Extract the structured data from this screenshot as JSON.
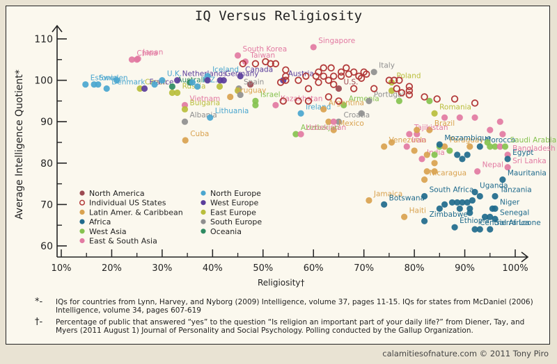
{
  "chart_data": {
    "type": "scatter",
    "title": "IQ Versus Religiosity",
    "xlabel": "Religiosity†",
    "ylabel": "Average Intelligence Quotient*",
    "xlim": [
      10,
      100
    ],
    "ylim": [
      57,
      112
    ],
    "xticks": [
      "10%",
      "20%",
      "30%",
      "40%",
      "50%",
      "60%",
      "70%",
      "80%",
      "90%",
      "100%"
    ],
    "yticks": [
      "60",
      "70",
      "80",
      "90",
      "100",
      "110"
    ],
    "legend_position": "bottom-left",
    "legend": [
      {
        "key": "na",
        "name": "North America",
        "color": "#9c4a52",
        "hollow": false
      },
      {
        "key": "us",
        "name": "Individual US States",
        "color": "#b23a3a",
        "hollow": true
      },
      {
        "key": "la",
        "name": "Latin Amer. & Caribbean",
        "color": "#d9a24f",
        "hollow": false
      },
      {
        "key": "af",
        "name": "Africa",
        "color": "#1f6a8c",
        "hollow": false
      },
      {
        "key": "wa",
        "name": "West Asia",
        "color": "#86c24f",
        "hollow": false
      },
      {
        "key": "ea",
        "name": "East & South Asia",
        "color": "#e27aa2",
        "hollow": false
      },
      {
        "key": "ne",
        "name": "North Europe",
        "color": "#4aa6cf",
        "hollow": false
      },
      {
        "key": "we",
        "name": "West Europe",
        "color": "#5a3d9b",
        "hollow": false
      },
      {
        "key": "ee",
        "name": "East Europe",
        "color": "#b9be3c",
        "hollow": false
      },
      {
        "key": "se",
        "name": "South Europe",
        "color": "#8f8f8f",
        "hollow": false
      },
      {
        "key": "oc",
        "name": "Oceania",
        "color": "#2e8b62",
        "hollow": false
      }
    ],
    "points": [
      {
        "label": "Sweden",
        "region": "ne",
        "x": 16.5,
        "y": 99
      },
      {
        "label": "",
        "region": "ne",
        "x": 17.3,
        "y": 99
      },
      {
        "label": "Estonia",
        "region": "ne",
        "x": 14.8,
        "y": 99
      },
      {
        "label": "Denmark",
        "region": "ne",
        "x": 19,
        "y": 98
      },
      {
        "label": "",
        "region": "ne",
        "x": 21,
        "y": 100
      },
      {
        "label": "China",
        "region": "ea",
        "x": 24,
        "y": 105
      },
      {
        "label": "",
        "region": "ea",
        "x": 25,
        "y": 105
      },
      {
        "label": "Japan",
        "region": "ea",
        "x": 25.2,
        "y": 105.2
      },
      {
        "label": "Czech",
        "region": "ee",
        "x": 25.6,
        "y": 98
      },
      {
        "label": "France",
        "region": "we",
        "x": 26.5,
        "y": 98
      },
      {
        "label": "",
        "region": "ne",
        "x": 28.5,
        "y": 99
      },
      {
        "label": "U.K.",
        "region": "ne",
        "x": 30,
        "y": 100
      },
      {
        "label": "Australia",
        "region": "oc",
        "x": 32,
        "y": 98.5
      },
      {
        "label": "",
        "region": "ee",
        "x": 32,
        "y": 97
      },
      {
        "label": "Russia",
        "region": "ee",
        "x": 33,
        "y": 97
      },
      {
        "label": "Netherlands",
        "region": "we",
        "x": 33,
        "y": 100
      },
      {
        "label": "",
        "region": "oc",
        "x": 35.5,
        "y": 99.5
      },
      {
        "label": "N.Z.",
        "region": "ne",
        "x": 37,
        "y": 98.5
      },
      {
        "label": "",
        "region": "ne",
        "x": 36,
        "y": 99.5
      },
      {
        "label": "Iceland",
        "region": "ne",
        "x": 39,
        "y": 101
      },
      {
        "label": "",
        "region": "we",
        "x": 39,
        "y": 100
      },
      {
        "label": "Germany",
        "region": "we",
        "x": 41.5,
        "y": 100
      },
      {
        "label": "",
        "region": "we",
        "x": 42.2,
        "y": 100
      },
      {
        "label": "",
        "region": "ee",
        "x": 41.4,
        "y": 98.5
      },
      {
        "label": "South Korea",
        "region": "ea",
        "x": 45,
        "y": 106
      },
      {
        "label": "Taiwan",
        "region": "ea",
        "x": 46.5,
        "y": 104.5
      },
      {
        "label": "Canada",
        "region": "we",
        "x": 45.5,
        "y": 101
      },
      {
        "label": "",
        "region": "na",
        "x": 47.5,
        "y": 99
      },
      {
        "label": "Spain",
        "region": "se",
        "x": 45.2,
        "y": 98
      },
      {
        "label": "",
        "region": "ee",
        "x": 45,
        "y": 97.5
      },
      {
        "label": "",
        "region": "se",
        "x": 45.5,
        "y": 96.5
      },
      {
        "label": "Uruguay",
        "region": "la",
        "x": 43.5,
        "y": 96
      },
      {
        "label": "Vietnam",
        "region": "ea",
        "x": 34.5,
        "y": 94
      },
      {
        "label": "Bulgaria",
        "region": "ee",
        "x": 34.5,
        "y": 93
      },
      {
        "label": "Albania",
        "region": "se",
        "x": 34.5,
        "y": 90
      },
      {
        "label": "Lithuania",
        "region": "ne",
        "x": 39.5,
        "y": 91
      },
      {
        "label": "Cuba",
        "region": "la",
        "x": 34.6,
        "y": 85.5
      },
      {
        "label": "Israel",
        "region": "wa",
        "x": 48.5,
        "y": 95
      },
      {
        "label": "",
        "region": "wa",
        "x": 48.5,
        "y": 94
      },
      {
        "label": "Kazakhstan",
        "region": "ea",
        "x": 52.5,
        "y": 94
      },
      {
        "label": "Ireland",
        "region": "ne",
        "x": 57.5,
        "y": 92
      },
      {
        "label": "Singapore",
        "region": "ea",
        "x": 60,
        "y": 108
      },
      {
        "label": "Austria",
        "region": "we",
        "x": 54,
        "y": 100
      },
      {
        "label": "Italy",
        "region": "se",
        "x": 72,
        "y": 102
      },
      {
        "label": "U.S.",
        "region": "na",
        "x": 65,
        "y": 98
      },
      {
        "label": "Armenia",
        "region": "wa",
        "x": 66,
        "y": 94
      },
      {
        "label": "Argentina",
        "region": "la",
        "x": 62,
        "y": 93
      },
      {
        "label": "Portugal",
        "region": "se",
        "x": 71,
        "y": 95
      },
      {
        "label": "",
        "region": "se",
        "x": 69.5,
        "y": 92
      },
      {
        "label": "Croatia",
        "region": "se",
        "x": 65,
        "y": 90
      },
      {
        "label": "",
        "region": "la",
        "x": 63,
        "y": 90
      },
      {
        "label": "",
        "region": "ea",
        "x": 64,
        "y": 90
      },
      {
        "label": "Mexico",
        "region": "la",
        "x": 64,
        "y": 88
      },
      {
        "label": "Azerbaijan",
        "region": "wa",
        "x": 56.5,
        "y": 87
      },
      {
        "label": "Uzbekistan",
        "region": "ea",
        "x": 57.5,
        "y": 87
      },
      {
        "label": "Poland",
        "region": "ee",
        "x": 75.5,
        "y": 99.5
      },
      {
        "label": "",
        "region": "ee",
        "x": 75.5,
        "y": 97.5
      },
      {
        "label": "",
        "region": "wa",
        "x": 77,
        "y": 95
      },
      {
        "label": "",
        "region": "wa",
        "x": 83,
        "y": 95
      },
      {
        "label": "Romania",
        "region": "ee",
        "x": 84,
        "y": 92
      },
      {
        "label": "",
        "region": "ea",
        "x": 86,
        "y": 91
      },
      {
        "label": "",
        "region": "ea",
        "x": 89,
        "y": 91
      },
      {
        "label": "",
        "region": "ea",
        "x": 92,
        "y": 91
      },
      {
        "label": "Brazil",
        "region": "la",
        "x": 83,
        "y": 88
      },
      {
        "label": "Tajikistan",
        "region": "ea",
        "x": 79,
        "y": 87
      },
      {
        "label": "",
        "region": "ea",
        "x": 80.5,
        "y": 87
      },
      {
        "label": "",
        "region": "la",
        "x": 80.5,
        "y": 88
      },
      {
        "label": "",
        "region": "la",
        "x": 75.5,
        "y": 85
      },
      {
        "label": "Venezuela",
        "region": "la",
        "x": 74,
        "y": 84
      },
      {
        "label": "Iran",
        "region": "ea",
        "x": 78.5,
        "y": 84
      },
      {
        "label": "",
        "region": "la",
        "x": 80,
        "y": 83
      },
      {
        "label": "India",
        "region": "ea",
        "x": 81.5,
        "y": 81
      },
      {
        "label": "",
        "region": "la",
        "x": 82.5,
        "y": 82
      },
      {
        "label": "",
        "region": "la",
        "x": 82.5,
        "y": 78
      },
      {
        "label": "Nicaragua",
        "region": "la",
        "x": 82,
        "y": 76
      },
      {
        "label": "",
        "region": "la",
        "x": 84,
        "y": 80
      },
      {
        "label": "",
        "region": "la",
        "x": 84,
        "y": 78
      },
      {
        "label": "",
        "region": "wa",
        "x": 84,
        "y": 82
      },
      {
        "label": "",
        "region": "wa",
        "x": 85,
        "y": 84
      },
      {
        "label": "Paraguay",
        "region": "la",
        "x": 86,
        "y": 84
      },
      {
        "label": "",
        "region": "wa",
        "x": 87,
        "y": 83
      },
      {
        "label": "Mozambique",
        "region": "af",
        "x": 85,
        "y": 84.5
      },
      {
        "label": "",
        "region": "af",
        "x": 88.5,
        "y": 82
      },
      {
        "label": "",
        "region": "af",
        "x": 89.5,
        "y": 81
      },
      {
        "label": "",
        "region": "af",
        "x": 90.5,
        "y": 82
      },
      {
        "label": "",
        "region": "la",
        "x": 91,
        "y": 84
      },
      {
        "label": "Morocco",
        "region": "af",
        "x": 93,
        "y": 84
      },
      {
        "label": "",
        "region": "wa",
        "x": 94.5,
        "y": 85
      },
      {
        "label": "",
        "region": "wa",
        "x": 95,
        "y": 84
      },
      {
        "label": "",
        "region": "wa",
        "x": 96,
        "y": 84
      },
      {
        "label": "",
        "region": "ea",
        "x": 97,
        "y": 84
      },
      {
        "label": "Saudi Arabia",
        "region": "wa",
        "x": 98,
        "y": 84
      },
      {
        "label": "",
        "region": "ea",
        "x": 95,
        "y": 88
      },
      {
        "label": "",
        "region": "ea",
        "x": 97,
        "y": 90
      },
      {
        "label": "",
        "region": "ea",
        "x": 97.5,
        "y": 87
      },
      {
        "label": "Bangladesh",
        "region": "ea",
        "x": 98.5,
        "y": 82
      },
      {
        "label": "Egypt",
        "region": "af",
        "x": 98.5,
        "y": 81
      },
      {
        "label": "Nepal",
        "region": "ea",
        "x": 92.5,
        "y": 78
      },
      {
        "label": "Sri Lanka",
        "region": "ea",
        "x": 98.5,
        "y": 79
      },
      {
        "label": "Mauritania",
        "region": "af",
        "x": 97.5,
        "y": 76
      },
      {
        "label": "South Africa",
        "region": "af",
        "x": 82,
        "y": 72
      },
      {
        "label": "Uganda",
        "region": "af",
        "x": 92,
        "y": 73
      },
      {
        "label": "Jamaica",
        "region": "la",
        "x": 71,
        "y": 71
      },
      {
        "label": "Botswana",
        "region": "af",
        "x": 74,
        "y": 70
      },
      {
        "label": "Haiti",
        "region": "la",
        "x": 78,
        "y": 67
      },
      {
        "label": "Tanzania",
        "region": "af",
        "x": 96,
        "y": 72
      },
      {
        "label": "",
        "region": "af",
        "x": 93,
        "y": 72
      },
      {
        "label": "",
        "region": "af",
        "x": 91.5,
        "y": 71
      },
      {
        "label": "",
        "region": "af",
        "x": 90.5,
        "y": 70.5
      },
      {
        "label": "",
        "region": "af",
        "x": 89.5,
        "y": 70.5
      },
      {
        "label": "",
        "region": "af",
        "x": 88.5,
        "y": 70.5
      },
      {
        "label": "",
        "region": "af",
        "x": 87.5,
        "y": 70.5
      },
      {
        "label": "",
        "region": "af",
        "x": 86,
        "y": 70
      },
      {
        "label": "",
        "region": "af",
        "x": 85,
        "y": 69
      },
      {
        "label": "",
        "region": "af",
        "x": 89,
        "y": 69
      },
      {
        "label": "",
        "region": "af",
        "x": 91,
        "y": 69
      },
      {
        "label": "",
        "region": "af",
        "x": 91,
        "y": 68
      },
      {
        "label": "Niger",
        "region": "af",
        "x": 96,
        "y": 69
      },
      {
        "label": "",
        "region": "af",
        "x": 95.5,
        "y": 69
      },
      {
        "label": "",
        "region": "af",
        "x": 94,
        "y": 67
      },
      {
        "label": "",
        "region": "af",
        "x": 95,
        "y": 67
      },
      {
        "label": "Senegal",
        "region": "af",
        "x": 96,
        "y": 66.5
      },
      {
        "label": "Zimbabwe",
        "region": "af",
        "x": 82,
        "y": 66
      },
      {
        "label": "Ethiopia",
        "region": "af",
        "x": 88,
        "y": 64.5
      },
      {
        "label": "Central Africa",
        "region": "af",
        "x": 92,
        "y": 64
      },
      {
        "label": "",
        "region": "af",
        "x": 93,
        "y": 64
      },
      {
        "label": "Sierra Leone",
        "region": "af",
        "x": 95,
        "y": 64
      },
      {
        "label": "",
        "region": "us",
        "x": 46,
        "y": 104
      },
      {
        "label": "",
        "region": "us",
        "x": 48.5,
        "y": 104
      },
      {
        "label": "",
        "region": "us",
        "x": 50.5,
        "y": 104.5
      },
      {
        "label": "",
        "region": "us",
        "x": 51.5,
        "y": 104
      },
      {
        "label": "",
        "region": "us",
        "x": 52.5,
        "y": 104
      },
      {
        "label": "",
        "region": "us",
        "x": 53.5,
        "y": 99.5
      },
      {
        "label": "",
        "region": "us",
        "x": 54.5,
        "y": 102.5
      },
      {
        "label": "",
        "region": "us",
        "x": 54.5,
        "y": 101
      },
      {
        "label": "",
        "region": "us",
        "x": 54.5,
        "y": 100
      },
      {
        "label": "",
        "region": "us",
        "x": 54,
        "y": 95
      },
      {
        "label": "",
        "region": "us",
        "x": 57,
        "y": 100
      },
      {
        "label": "",
        "region": "us",
        "x": 58.5,
        "y": 101
      },
      {
        "label": "",
        "region": "us",
        "x": 59,
        "y": 98
      },
      {
        "label": "",
        "region": "us",
        "x": 57,
        "y": 95
      },
      {
        "label": "",
        "region": "us",
        "x": 59,
        "y": 95
      },
      {
        "label": "",
        "region": "us",
        "x": 60.5,
        "y": 101
      },
      {
        "label": "",
        "region": "us",
        "x": 61,
        "y": 102
      },
      {
        "label": "",
        "region": "us",
        "x": 62,
        "y": 101
      },
      {
        "label": "",
        "region": "us",
        "x": 62,
        "y": 103
      },
      {
        "label": "",
        "region": "us",
        "x": 61,
        "y": 99.5
      },
      {
        "label": "",
        "region": "us",
        "x": 63.5,
        "y": 103
      },
      {
        "label": "",
        "region": "us",
        "x": 63,
        "y": 100
      },
      {
        "label": "",
        "region": "us",
        "x": 64,
        "y": 101
      },
      {
        "label": "",
        "region": "us",
        "x": 65.5,
        "y": 102
      },
      {
        "label": "",
        "region": "us",
        "x": 65.5,
        "y": 101
      },
      {
        "label": "",
        "region": "us",
        "x": 66.5,
        "y": 103
      },
      {
        "label": "",
        "region": "us",
        "x": 67,
        "y": 101.5
      },
      {
        "label": "",
        "region": "us",
        "x": 68,
        "y": 102
      },
      {
        "label": "",
        "region": "us",
        "x": 69,
        "y": 101
      },
      {
        "label": "",
        "region": "us",
        "x": 70,
        "y": 102
      },
      {
        "label": "",
        "region": "us",
        "x": 69.5,
        "y": 100.5
      },
      {
        "label": "",
        "region": "us",
        "x": 70.5,
        "y": 101.5
      },
      {
        "label": "",
        "region": "us",
        "x": 68,
        "y": 98
      },
      {
        "label": "",
        "region": "us",
        "x": 64,
        "y": 99
      },
      {
        "label": "",
        "region": "us",
        "x": 63,
        "y": 96
      },
      {
        "label": "",
        "region": "us",
        "x": 65,
        "y": 95
      },
      {
        "label": "",
        "region": "us",
        "x": 72,
        "y": 98
      },
      {
        "label": "",
        "region": "us",
        "x": 75,
        "y": 100
      },
      {
        "label": "",
        "region": "us",
        "x": 76,
        "y": 100
      },
      {
        "label": "",
        "region": "us",
        "x": 77,
        "y": 100
      },
      {
        "label": "",
        "region": "us",
        "x": 76.5,
        "y": 98
      },
      {
        "label": "",
        "region": "us",
        "x": 77.5,
        "y": 97
      },
      {
        "label": "",
        "region": "us",
        "x": 79,
        "y": 97.5
      },
      {
        "label": "",
        "region": "us",
        "x": 79,
        "y": 96.5
      },
      {
        "label": "",
        "region": "us",
        "x": 79,
        "y": 98.5
      },
      {
        "label": "",
        "region": "us",
        "x": 82,
        "y": 96
      },
      {
        "label": "",
        "region": "us",
        "x": 84.5,
        "y": 95.5
      },
      {
        "label": "",
        "region": "us",
        "x": 88,
        "y": 95.5
      },
      {
        "label": "",
        "region": "us",
        "x": 92,
        "y": 94.5
      }
    ]
  },
  "footnotes": [
    {
      "symbol": "*-",
      "text": "IQs for countries from Lynn, Harvey, and Nyborg (2009) Intelligence, volume 37, pages 11-15. IQs for states from McDaniel (2006) Intelligence, volume 34, pages 607-619"
    },
    {
      "symbol": "†-",
      "text": "Percentage of public that answered “yes” to the question “Is religion an important part of your daily life?” from Diener, Tay, and Myers (2011 August 1) Journal of Personality and Social Psychology. Polling conducted by the Gallup Organization."
    }
  ],
  "credit": "calamitiesofnature.com © 2011 Tony Piro"
}
